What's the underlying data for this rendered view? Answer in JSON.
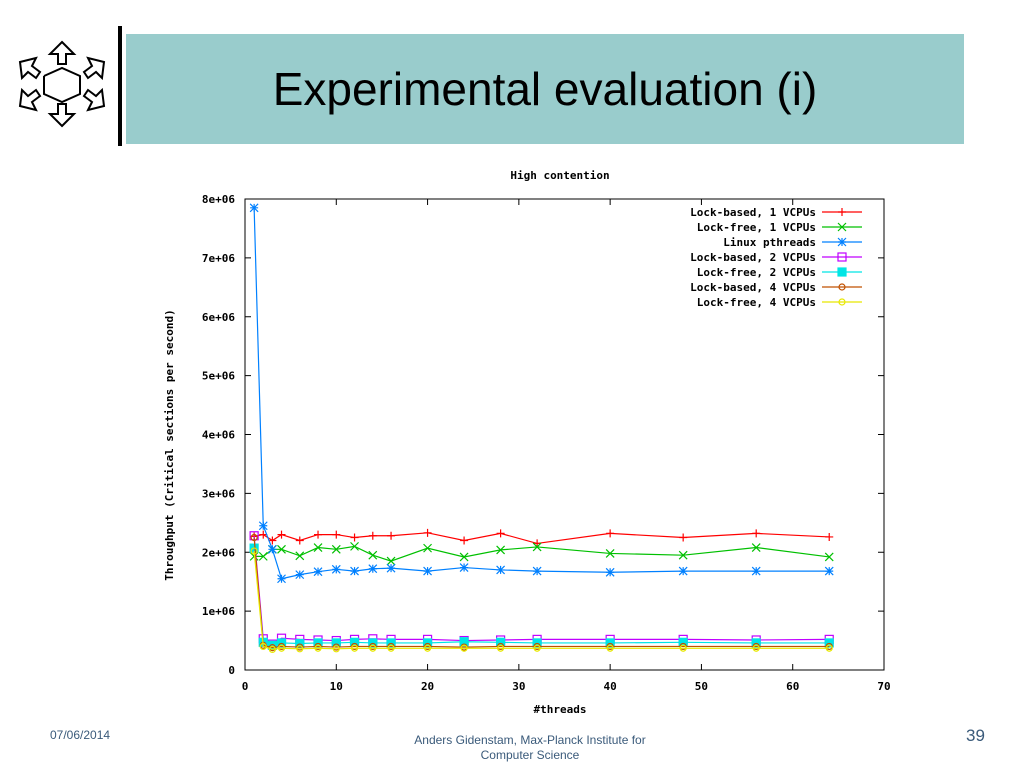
{
  "slide": {
    "title": "Experimental evaluation (i)",
    "date": "07/06/2014",
    "footer_line1": "Anders Gidenstam, Max-Planck Institute for",
    "footer_line2": "Computer Science",
    "page_number": "39"
  },
  "chart_data": {
    "type": "line",
    "title": "High contention",
    "xlabel": "#threads",
    "ylabel": "Throughput (Critical sections per second)",
    "xlim": [
      0,
      70
    ],
    "ylim": [
      0,
      8000000
    ],
    "x_ticks": [
      "0",
      "10",
      "20",
      "30",
      "40",
      "50",
      "60",
      "70"
    ],
    "y_ticks": [
      "0",
      "1e+06",
      "2e+06",
      "3e+06",
      "4e+06",
      "5e+06",
      "6e+06",
      "7e+06",
      "8e+06"
    ],
    "legend_position": "top-right",
    "grid": false,
    "x": [
      1,
      2,
      3,
      4,
      6,
      8,
      10,
      12,
      14,
      16,
      20,
      24,
      28,
      32,
      40,
      48,
      56,
      64
    ],
    "series": [
      {
        "name": "Lock-based, 1 VCPUs",
        "color": "#ff0000",
        "marker": "plus",
        "values": [
          2270000,
          2300000,
          2200000,
          2300000,
          2200000,
          2300000,
          2300000,
          2250000,
          2280000,
          2280000,
          2330000,
          2200000,
          2320000,
          2150000,
          2320000,
          2250000,
          2320000,
          2260000
        ]
      },
      {
        "name": "Lock-free, 1 VCPUs",
        "color": "#00c000",
        "marker": "x",
        "values": [
          1930000,
          1930000,
          2050000,
          2050000,
          1940000,
          2080000,
          2050000,
          2100000,
          1950000,
          1850000,
          2070000,
          1920000,
          2040000,
          2090000,
          1980000,
          1950000,
          2080000,
          1920000
        ]
      },
      {
        "name": "Linux pthreads",
        "color": "#0080ff",
        "marker": "star",
        "values": [
          7850000,
          2450000,
          2050000,
          1550000,
          1620000,
          1670000,
          1710000,
          1680000,
          1720000,
          1730000,
          1680000,
          1740000,
          1700000,
          1680000,
          1660000,
          1680000,
          1680000,
          1680000
        ]
      },
      {
        "name": "Lock-based, 2 VCPUs",
        "color": "#c000ff",
        "marker": "square",
        "values": [
          2280000,
          530000,
          440000,
          540000,
          520000,
          510000,
          500000,
          520000,
          530000,
          520000,
          520000,
          500000,
          510000,
          520000,
          520000,
          520000,
          510000,
          520000
        ]
      },
      {
        "name": "Lock-free, 2 VCPUs",
        "color": "#00e5e5",
        "marker": "filled-square",
        "values": [
          2070000,
          470000,
          420000,
          460000,
          450000,
          460000,
          460000,
          470000,
          460000,
          460000,
          460000,
          480000,
          470000,
          460000,
          460000,
          470000,
          460000,
          460000
        ]
      },
      {
        "name": "Lock-based, 4 VCPUs",
        "color": "#c05000",
        "marker": "circle",
        "values": [
          2250000,
          420000,
          380000,
          400000,
          390000,
          400000,
          390000,
          400000,
          400000,
          400000,
          400000,
          390000,
          400000,
          400000,
          400000,
          400000,
          400000,
          400000
        ]
      },
      {
        "name": "Lock-free, 4 VCPUs",
        "color": "#e8e800",
        "marker": "circle",
        "values": [
          2020000,
          400000,
          350000,
          370000,
          360000,
          370000,
          360000,
          370000,
          370000,
          370000,
          370000,
          370000,
          370000,
          370000,
          370000,
          370000,
          370000,
          370000
        ]
      }
    ]
  }
}
